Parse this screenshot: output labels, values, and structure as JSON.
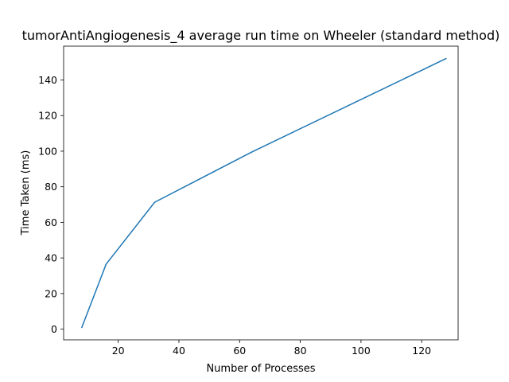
{
  "chart_data": {
    "type": "line",
    "title": "tumorAntiAngiogenesis_4 average run time on Wheeler (standard method)",
    "xlabel": "Number of Processes",
    "ylabel": "Time Taken (ms)",
    "xlim": [
      2,
      132
    ],
    "ylim": [
      -6,
      159
    ],
    "xticks": [
      20,
      40,
      60,
      80,
      100,
      120
    ],
    "yticks": [
      0,
      20,
      40,
      60,
      80,
      100,
      120,
      140
    ],
    "grid": false,
    "legend": "none",
    "series": [
      {
        "color": "#1f77b4",
        "x": [
          8,
          16,
          32,
          64,
          128
        ],
        "y": [
          1,
          36.5,
          71.3,
          99.5,
          152
        ]
      }
    ]
  }
}
